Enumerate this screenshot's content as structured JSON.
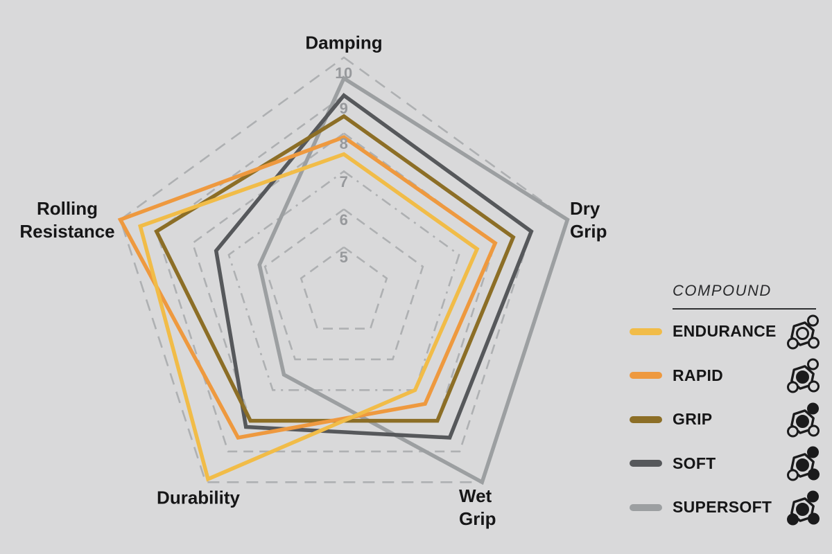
{
  "background_color": "#D9D9DA",
  "chart_data": {
    "type": "radar",
    "title": "",
    "axes": [
      "Damping",
      "Dry Grip",
      "Wet Grip",
      "Durability",
      "Rolling Resistance"
    ],
    "axis_display": [
      "Damping",
      "Dry\nGrip",
      "Wet\nGrip",
      "Durability",
      "Rolling\nResistance"
    ],
    "scale": {
      "min": 5,
      "max": 10,
      "ticks": [
        10,
        9,
        8,
        7,
        6,
        5
      ]
    },
    "grid": {
      "style": "dashed-pentagon-rings",
      "ring_color": "#AEB0B2",
      "tick_color": "#97999C"
    },
    "legend_position": "right",
    "series": [
      {
        "name": "ENDURANCE",
        "color": "#F1BC48",
        "values": [
          7.45,
          7.5,
          7.0,
          9.9,
          9.45
        ]
      },
      {
        "name": "RAPID",
        "color": "#EE993F",
        "values": [
          7.9,
          8.0,
          7.45,
          8.55,
          10.0
        ]
      },
      {
        "name": "GRIP",
        "color": "#8C6E26",
        "values": [
          8.45,
          8.5,
          8.0,
          8.0,
          9.0
        ]
      },
      {
        "name": "SOFT",
        "color": "#56585B",
        "values": [
          9.0,
          9.0,
          8.55,
          8.2,
          7.35
        ]
      },
      {
        "name": "SUPERSOFT",
        "color": "#9C9FA1",
        "values": [
          9.45,
          10.0,
          10.0,
          6.5,
          6.15
        ]
      }
    ]
  },
  "legend": {
    "title": "COMPOUND",
    "items": [
      {
        "label": "ENDURANCE",
        "color": "#F1BC48",
        "molecule_filled": {
          "center": false,
          "top_right": false,
          "bottom_left": false,
          "bottom_right": false
        }
      },
      {
        "label": "RAPID",
        "color": "#EE993F",
        "molecule_filled": {
          "center": true,
          "top_right": false,
          "bottom_left": false,
          "bottom_right": false
        }
      },
      {
        "label": "GRIP",
        "color": "#8C6E26",
        "molecule_filled": {
          "center": true,
          "top_right": true,
          "bottom_left": false,
          "bottom_right": false
        }
      },
      {
        "label": "SOFT",
        "color": "#56585B",
        "molecule_filled": {
          "center": true,
          "top_right": true,
          "bottom_left": false,
          "bottom_right": true
        }
      },
      {
        "label": "SUPERSOFT",
        "color": "#9C9FA1",
        "molecule_filled": {
          "center": true,
          "top_right": true,
          "bottom_left": true,
          "bottom_right": true
        }
      }
    ]
  }
}
